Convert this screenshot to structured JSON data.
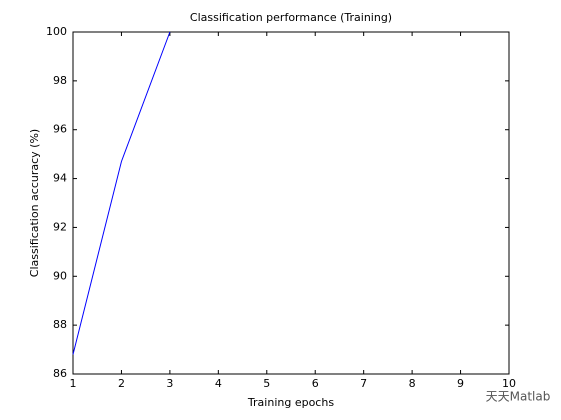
{
  "chart_data": {
    "type": "line",
    "title": "Classification performance (Training)",
    "x_label": "Training epochs",
    "y_label": "Classification accuracy (%)",
    "x": [
      1,
      2,
      3
    ],
    "series": [
      {
        "color": "#0000ff",
        "values": [
          86.8,
          94.7,
          100
        ]
      }
    ],
    "xlim": [
      1,
      10
    ],
    "xticks": [
      1,
      2,
      3,
      4,
      5,
      6,
      7,
      8,
      9,
      10
    ],
    "ylim": [
      86,
      100
    ],
    "yticks": [
      86,
      88,
      90,
      92,
      94,
      96,
      98,
      100
    ],
    "grid": false
  },
  "watermark": "天天Matlab"
}
